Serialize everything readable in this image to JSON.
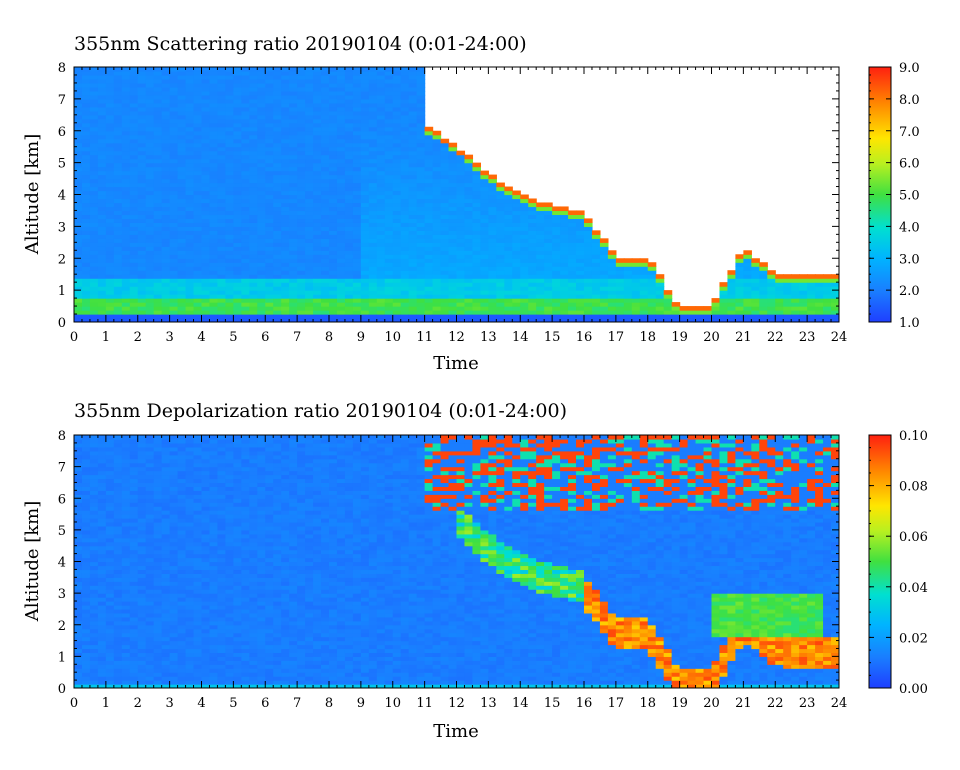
{
  "chart_data": [
    {
      "type": "heatmap",
      "title": "355nm Scattering ratio  20190104 (0:01-24:00)",
      "xlabel": "Time",
      "ylabel": "Altitude [km]",
      "xlim": [
        0,
        24
      ],
      "ylim": [
        0,
        8
      ],
      "x_ticks": [
        "0",
        "1",
        "2",
        "3",
        "4",
        "5",
        "6",
        "7",
        "8",
        "9",
        "10",
        "11",
        "12",
        "13",
        "14",
        "15",
        "16",
        "17",
        "18",
        "19",
        "20",
        "21",
        "22",
        "23",
        "24"
      ],
      "y_ticks": [
        "0",
        "1",
        "2",
        "3",
        "4",
        "5",
        "6",
        "7",
        "8"
      ],
      "colorbar": {
        "range": [
          1.0,
          9.0
        ],
        "ticks": [
          "1.0",
          "2.0",
          "3.0",
          "4.0",
          "5.0",
          "6.0",
          "7.0",
          "8.0",
          "9.0"
        ]
      },
      "cloud_base_km": [
        {
          "time": 11.0,
          "base": 6.0,
          "top": 8.0
        },
        {
          "time": 12.0,
          "base": 5.3,
          "top": 8.0
        },
        {
          "time": 13.0,
          "base": 4.4,
          "top": 8.0
        },
        {
          "time": 14.0,
          "base": 3.8,
          "top": 8.0
        },
        {
          "time": 15.0,
          "base": 3.4,
          "top": 8.0
        },
        {
          "time": 16.0,
          "base": 3.2,
          "top": 8.0
        },
        {
          "time": 17.0,
          "base": 1.8,
          "top": 8.0
        },
        {
          "time": 18.0,
          "base": 1.8,
          "top": 8.0
        },
        {
          "time": 19.0,
          "base": 0.2,
          "top": 8.0
        },
        {
          "time": 20.0,
          "base": 0.3,
          "top": 8.0
        },
        {
          "time": 21.0,
          "base": 2.1,
          "top": 8.0
        },
        {
          "time": 22.0,
          "base": 1.3,
          "top": 8.0
        },
        {
          "time": 23.0,
          "base": 1.2,
          "top": 8.0
        }
      ]
    },
    {
      "type": "heatmap",
      "title": "355nm Depolarization ratio  20190104 (0:01-24:00)",
      "xlabel": "Time",
      "ylabel": "Altitude [km]",
      "xlim": [
        0,
        24
      ],
      "ylim": [
        0,
        8
      ],
      "x_ticks": [
        "0",
        "1",
        "2",
        "3",
        "4",
        "5",
        "6",
        "7",
        "8",
        "9",
        "10",
        "11",
        "12",
        "13",
        "14",
        "15",
        "16",
        "17",
        "18",
        "19",
        "20",
        "21",
        "22",
        "23",
        "24"
      ],
      "y_ticks": [
        "0",
        "1",
        "2",
        "3",
        "4",
        "5",
        "6",
        "7",
        "8"
      ],
      "colorbar": {
        "range": [
          0.0,
          0.1
        ],
        "ticks": [
          "0.00",
          "0.02",
          "0.04",
          "0.06",
          "0.08",
          "0.10"
        ]
      }
    }
  ]
}
